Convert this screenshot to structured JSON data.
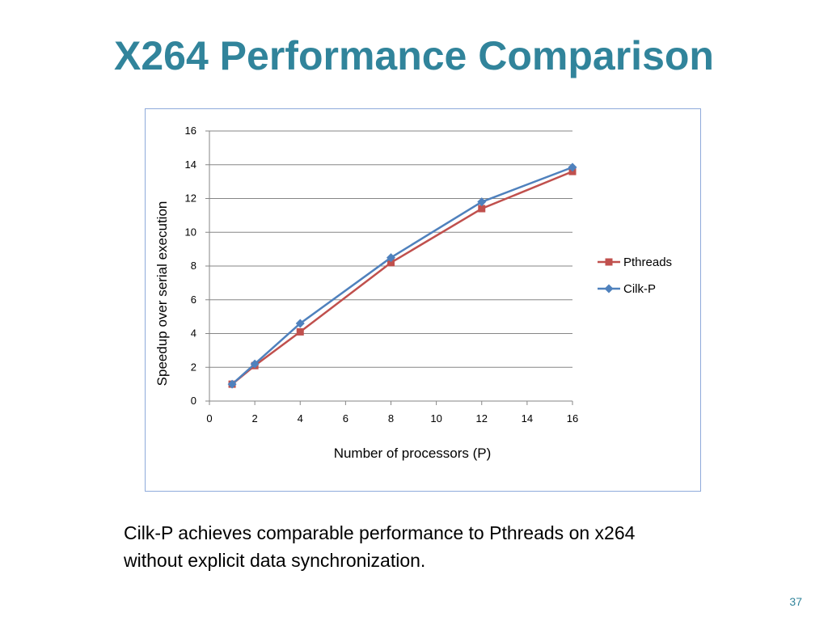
{
  "slide": {
    "title": "X264 Performance Comparison",
    "caption_line1": "Cilk-P achieves comparable performance to Pthreads on x264",
    "caption_line2": "without explicit data synchronization.",
    "page_number": "37",
    "title_color": "#31849b"
  },
  "chart_data": {
    "type": "line",
    "title": "",
    "xlabel": "Number of processors (P)",
    "ylabel": "Speedup over serial execution",
    "xlim": [
      0,
      16
    ],
    "ylim": [
      0,
      16
    ],
    "xticks": [
      "0",
      "2",
      "4",
      "6",
      "8",
      "10",
      "12",
      "14",
      "16"
    ],
    "yticks": [
      "0",
      "2",
      "4",
      "6",
      "8",
      "10",
      "12",
      "14",
      "16"
    ],
    "grid": "horizontal",
    "legend_position": "right",
    "series": [
      {
        "name": "Pthreads",
        "color": "#c0504d",
        "marker": "square",
        "x": [
          1,
          2,
          4,
          8,
          12,
          16
        ],
        "y": [
          1.0,
          2.1,
          4.1,
          8.2,
          11.4,
          13.6
        ]
      },
      {
        "name": "Cilk-P",
        "color": "#4f81bd",
        "marker": "diamond",
        "x": [
          1,
          2,
          4,
          8,
          12,
          16
        ],
        "y": [
          1.0,
          2.2,
          4.6,
          8.5,
          11.8,
          13.85
        ]
      }
    ]
  }
}
